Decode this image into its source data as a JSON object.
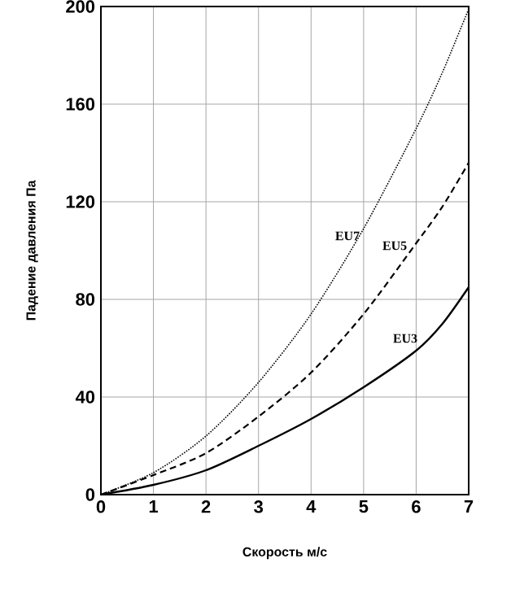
{
  "chart_data": {
    "type": "line",
    "xlabel": "Скорость м/с",
    "ylabel": "Падение давления Па",
    "x": [
      0,
      1,
      2,
      3,
      4,
      5,
      6,
      6.5,
      7
    ],
    "series": [
      {
        "name": "EU7",
        "color": "#000000",
        "line_style": "dotted",
        "values": [
          0,
          9,
          24,
          46,
          74,
          109,
          150,
          173,
          199
        ]
      },
      {
        "name": "EU5",
        "color": "#000000",
        "line_style": "dashed",
        "values": [
          0,
          8,
          17,
          32,
          50,
          74,
          103,
          118,
          136
        ]
      },
      {
        "name": "EU3",
        "color": "#000000",
        "line_style": "solid",
        "values": [
          0,
          4,
          10,
          20,
          31,
          44,
          59,
          70,
          85
        ]
      }
    ],
    "xlim": [
      0,
      7
    ],
    "xticks": [
      0,
      1,
      2,
      3,
      4,
      5,
      6,
      7
    ],
    "ylim": [
      0,
      200
    ],
    "yticks": [
      0,
      40,
      80,
      120,
      160,
      200
    ],
    "grid": true,
    "marker": "none"
  }
}
